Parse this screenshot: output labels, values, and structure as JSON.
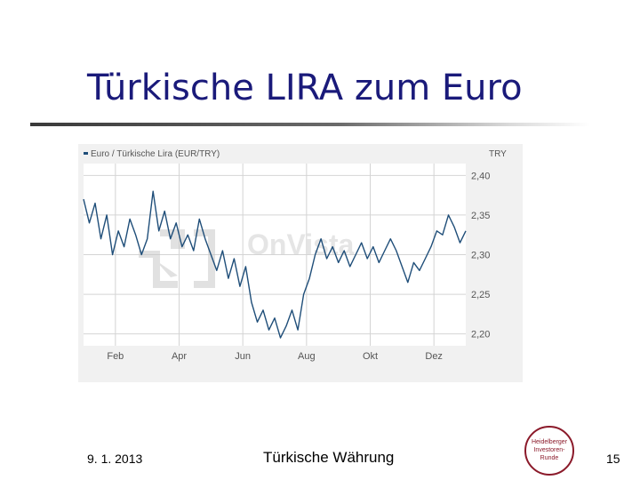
{
  "slide": {
    "title": "Türkische LIRA zum Euro",
    "footer_date": "9. 1. 2013",
    "footer_text": "Türkische Währung",
    "page_number": "15"
  },
  "logo": {
    "lines": [
      "Heidelberger",
      "Investoren-",
      "Runde"
    ],
    "color": "#8b1a2a"
  },
  "watermark": "OnVista",
  "colors": {
    "title": "#1a1a7a",
    "line": "#1f4e79",
    "grid": "#d4d4d4",
    "chart_bg": "#f1f1f1",
    "plot_bg": "#ffffff"
  },
  "chart_data": {
    "type": "line",
    "legend": "Euro / Türkische Lira (EUR/TRY)",
    "currency_label": "TRY",
    "x_tick_labels": [
      "Feb",
      "Apr",
      "Jun",
      "Aug",
      "Okt",
      "Dez"
    ],
    "ylim": [
      2.185,
      2.415
    ],
    "y_ticks": [
      {
        "value": 2.4,
        "label": "2,40"
      },
      {
        "value": 2.35,
        "label": "2,35"
      },
      {
        "value": 2.3,
        "label": "2,30"
      },
      {
        "value": 2.25,
        "label": "2,25"
      },
      {
        "value": 2.2,
        "label": "2,20"
      }
    ],
    "grid": true,
    "legend_position": "top-left",
    "series": [
      {
        "name": "Euro / Türkische Lira (EUR/TRY)",
        "values": [
          2.37,
          2.34,
          2.365,
          2.32,
          2.35,
          2.3,
          2.33,
          2.31,
          2.345,
          2.325,
          2.3,
          2.32,
          2.38,
          2.33,
          2.355,
          2.32,
          2.34,
          2.31,
          2.325,
          2.305,
          2.345,
          2.32,
          2.3,
          2.28,
          2.305,
          2.27,
          2.295,
          2.26,
          2.285,
          2.24,
          2.215,
          2.23,
          2.205,
          2.22,
          2.195,
          2.21,
          2.23,
          2.205,
          2.25,
          2.27,
          2.3,
          2.32,
          2.295,
          2.31,
          2.29,
          2.305,
          2.285,
          2.3,
          2.315,
          2.295,
          2.31,
          2.29,
          2.305,
          2.32,
          2.305,
          2.285,
          2.265,
          2.29,
          2.28,
          2.295,
          2.31,
          2.33,
          2.325,
          2.35,
          2.335,
          2.315,
          2.33
        ]
      }
    ]
  }
}
